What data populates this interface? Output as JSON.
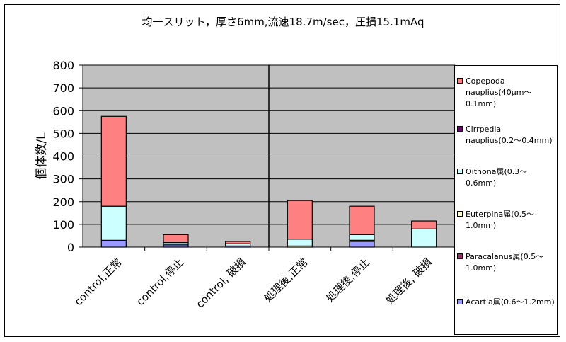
{
  "chart_data": {
    "type": "bar",
    "stacked": true,
    "title": "均一スリット，厚さ6mm,流速18.7m/sec，圧損15.1mAq",
    "ylabel": "個体数/L",
    "xlabel": "",
    "ylim": [
      0,
      800
    ],
    "yticks": [
      "0",
      "100",
      "200",
      "300",
      "400",
      "500",
      "600",
      "700",
      "800"
    ],
    "grid": true,
    "legend_position": "right",
    "categories": [
      "control,正常",
      "control,停止",
      "control, 破損",
      "処理後,正常",
      "処理後,停止",
      "処理後, 破損"
    ],
    "series": [
      {
        "name": "Acartia属(0.6〜1.2mm)",
        "color": "#9999FF",
        "values": [
          30,
          10,
          5,
          0,
          25,
          0
        ]
      },
      {
        "name": "Paracalanus属(0.5〜1.0mm)",
        "color": "#993366",
        "values": [
          0,
          0,
          0,
          0,
          0,
          0
        ]
      },
      {
        "name": "Euterpina属(0.5〜1.0mm)",
        "color": "#FFFFCC",
        "values": [
          0,
          0,
          0,
          5,
          5,
          0
        ]
      },
      {
        "name": "Oithona属(0.3〜0.6mm)",
        "color": "#CCFFFF",
        "values": [
          150,
          10,
          10,
          30,
          25,
          80
        ]
      },
      {
        "name": "Cirrpedia nauplius(0.2〜0.4mm)",
        "color": "#660066",
        "values": [
          0,
          0,
          0,
          0,
          0,
          0
        ]
      },
      {
        "name": "Copepoda nauplius(40μm〜0.1mm)",
        "color": "#FF8080",
        "values": [
          395,
          35,
          10,
          170,
          125,
          35
        ]
      }
    ],
    "legend_entries": [
      {
        "label": "Copepoda nauplius(40μm〜0.1mm)",
        "color": "#FF8080"
      },
      {
        "label": "Cirrpedia nauplius(0.2〜0.4mm)",
        "color": "#660066"
      },
      {
        "label": "Oithona属(0.3〜0.6mm)",
        "color": "#CCFFFF"
      },
      {
        "label": "Euterpina属(0.5〜1.0mm)",
        "color": "#FFFFCC"
      },
      {
        "label": "Paracalanus属(0.5〜1.0mm)",
        "color": "#993366"
      },
      {
        "label": "Acartia属(0.6〜1.2mm)",
        "color": "#9999FF"
      }
    ],
    "colors": {
      "plot_background": "#C0C0C0",
      "gridline": "#000000",
      "divider": "#000000"
    }
  }
}
